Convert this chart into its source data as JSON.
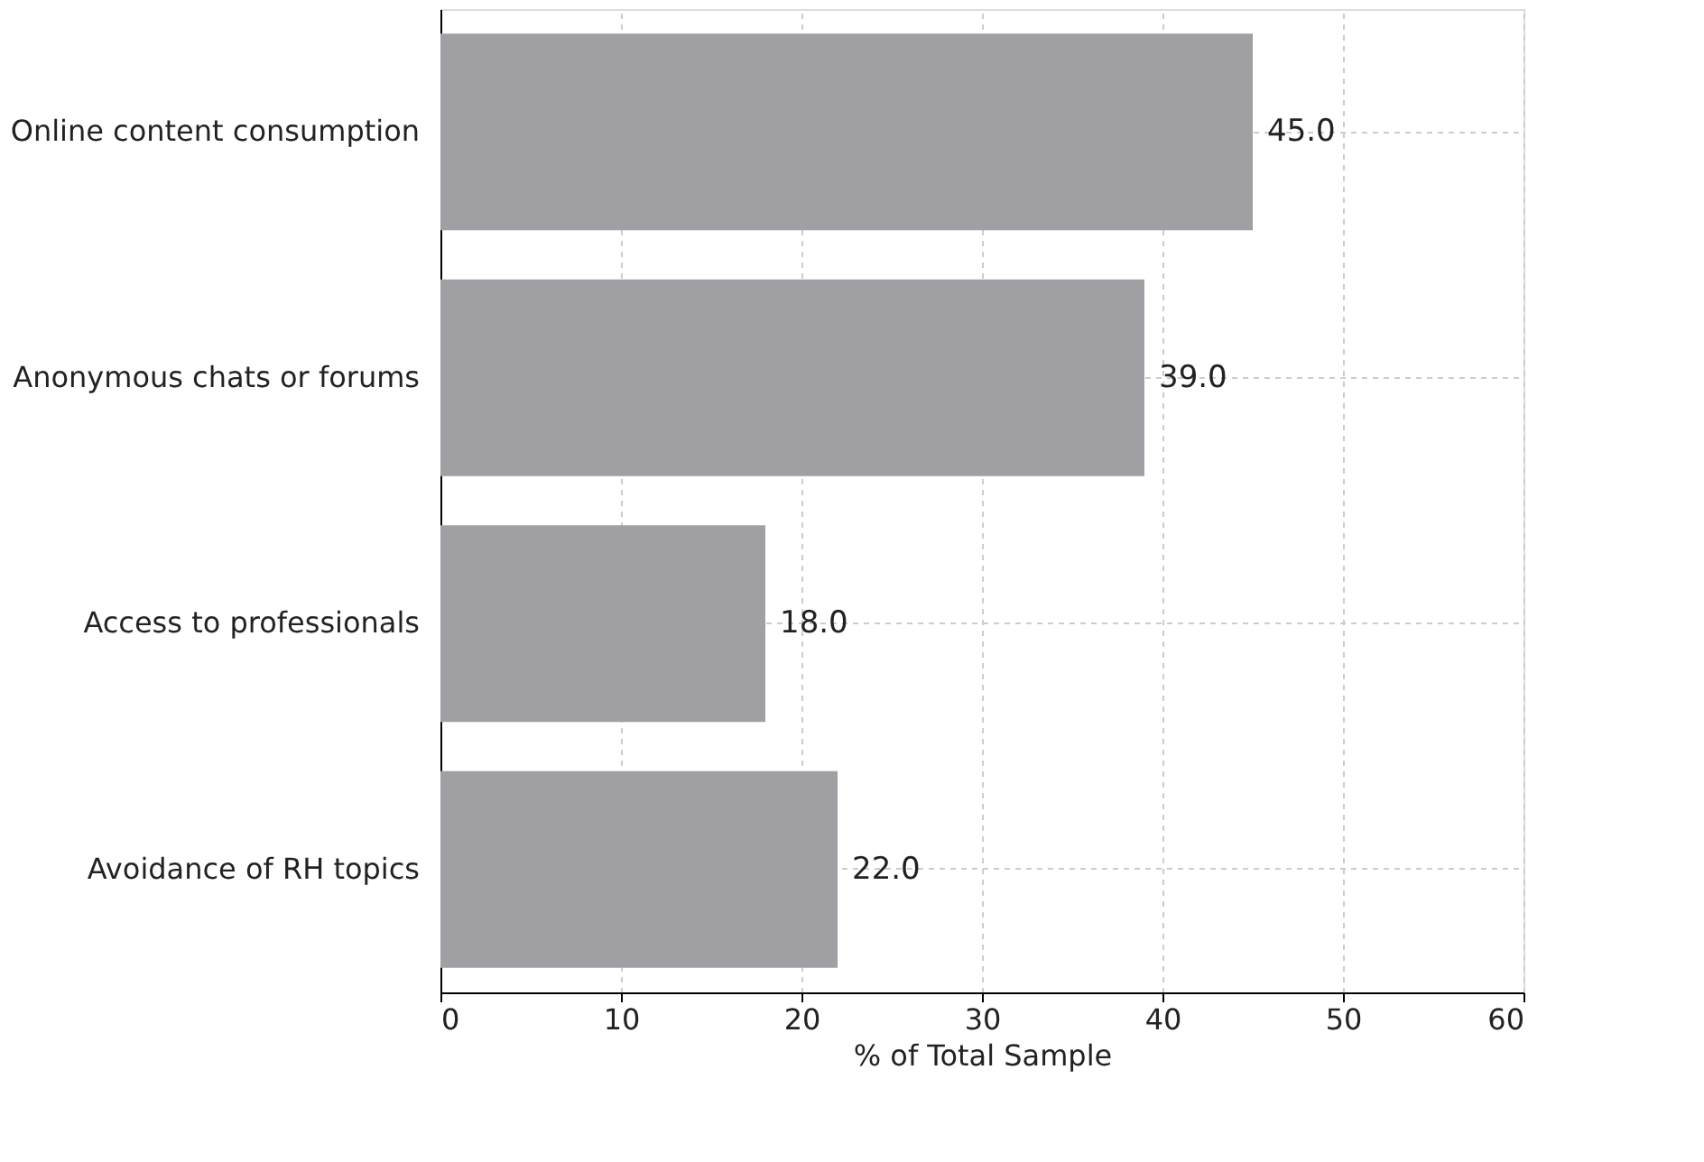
{
  "chart_data": {
    "type": "bar",
    "orientation": "horizontal",
    "categories": [
      "Online content consumption",
      "Anonymous chats or forums",
      "Access to professionals",
      "Avoidance of RH topics"
    ],
    "values": [
      45,
      39,
      18,
      22
    ],
    "color": "#a0a0a4",
    "value_labels": [
      "45.0",
      "39.0",
      "18.0",
      "22.0"
    ],
    "xlabel": "% of Total Sample",
    "xlim": [
      0,
      60
    ],
    "xticks": [
      0,
      10,
      20,
      30,
      40,
      50,
      60
    ],
    "grid": true
  }
}
